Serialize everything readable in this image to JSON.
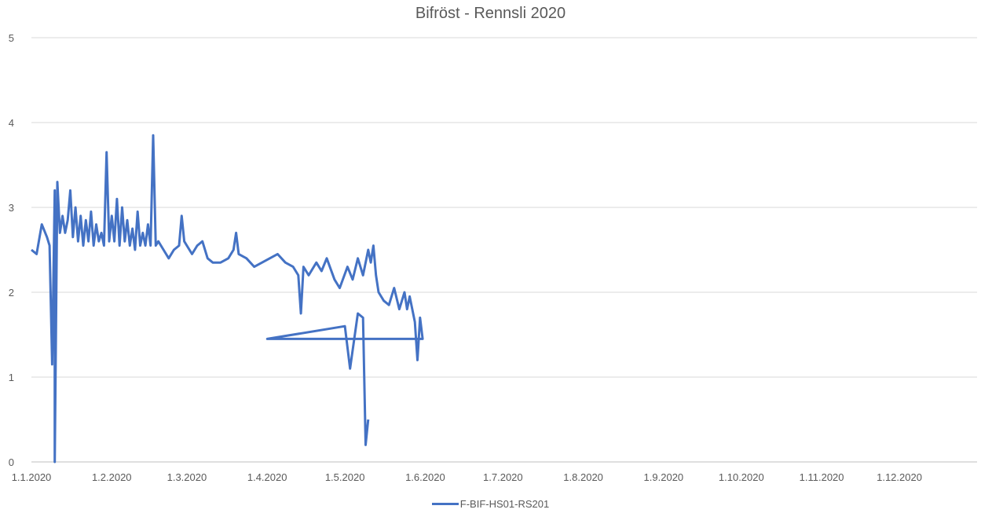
{
  "chart_data": {
    "type": "line",
    "title": "Bifröst - Rennsli 2020",
    "xlabel": "",
    "ylabel": "",
    "x_tick_labels": [
      "1.1.2020",
      "1.2.2020",
      "1.3.2020",
      "1.4.2020",
      "1.5.2020",
      "1.6.2020",
      "1.7.2020",
      "1.8.2020",
      "1.9.2020",
      "1.10.2020",
      "1.11.2020",
      "1.12.2020"
    ],
    "y_tick_labels": [
      "0",
      "1",
      "2",
      "3",
      "4",
      "5"
    ],
    "ylim": [
      0,
      5
    ],
    "xlim": [
      "1.1.2020",
      "31.12.2020"
    ],
    "grid": true,
    "legend_position": "bottom",
    "series": [
      {
        "name": "F-BIF-HS01-RS201",
        "color": "#4472C4",
        "x_format": "d.m.yyyy",
        "points": [
          [
            "1.1.2020",
            2.5
          ],
          [
            "3.1.2020",
            2.45
          ],
          [
            "5.1.2020",
            2.8
          ],
          [
            "7.1.2020",
            2.65
          ],
          [
            "8.1.2020",
            2.55
          ],
          [
            "9.1.2020",
            1.15
          ],
          [
            "10.1.2020",
            3.2
          ],
          [
            "10.1.2020",
            0.0
          ],
          [
            "11.1.2020",
            3.3
          ],
          [
            "12.1.2020",
            2.7
          ],
          [
            "13.1.2020",
            2.9
          ],
          [
            "14.1.2020",
            2.7
          ],
          [
            "15.1.2020",
            2.85
          ],
          [
            "16.1.2020",
            3.2
          ],
          [
            "17.1.2020",
            2.65
          ],
          [
            "18.1.2020",
            3.0
          ],
          [
            "19.1.2020",
            2.6
          ],
          [
            "20.1.2020",
            2.9
          ],
          [
            "21.1.2020",
            2.55
          ],
          [
            "22.1.2020",
            2.85
          ],
          [
            "23.1.2020",
            2.6
          ],
          [
            "24.1.2020",
            2.95
          ],
          [
            "25.1.2020",
            2.55
          ],
          [
            "26.1.2020",
            2.8
          ],
          [
            "27.1.2020",
            2.6
          ],
          [
            "28.1.2020",
            2.7
          ],
          [
            "29.1.2020",
            2.55
          ],
          [
            "30.1.2020",
            3.65
          ],
          [
            "31.1.2020",
            2.6
          ],
          [
            "1.2.2020",
            2.9
          ],
          [
            "2.2.2020",
            2.6
          ],
          [
            "3.2.2020",
            3.1
          ],
          [
            "4.2.2020",
            2.55
          ],
          [
            "5.2.2020",
            3.0
          ],
          [
            "6.2.2020",
            2.6
          ],
          [
            "7.2.2020",
            2.85
          ],
          [
            "8.2.2020",
            2.55
          ],
          [
            "9.2.2020",
            2.75
          ],
          [
            "10.2.2020",
            2.5
          ],
          [
            "11.2.2020",
            2.95
          ],
          [
            "12.2.2020",
            2.55
          ],
          [
            "13.2.2020",
            2.7
          ],
          [
            "14.2.2020",
            2.55
          ],
          [
            "15.2.2020",
            2.8
          ],
          [
            "16.2.2020",
            2.55
          ],
          [
            "17.2.2020",
            3.85
          ],
          [
            "18.2.2020",
            2.55
          ],
          [
            "19.2.2020",
            2.6
          ],
          [
            "21.2.2020",
            2.5
          ],
          [
            "23.2.2020",
            2.4
          ],
          [
            "25.2.2020",
            2.5
          ],
          [
            "27.2.2020",
            2.55
          ],
          [
            "28.2.2020",
            2.9
          ],
          [
            "29.2.2020",
            2.6
          ],
          [
            "1.3.2020",
            2.55
          ],
          [
            "3.3.2020",
            2.45
          ],
          [
            "5.3.2020",
            2.55
          ],
          [
            "7.3.2020",
            2.6
          ],
          [
            "9.3.2020",
            2.4
          ],
          [
            "11.3.2020",
            2.35
          ],
          [
            "14.3.2020",
            2.35
          ],
          [
            "17.3.2020",
            2.4
          ],
          [
            "19.3.2020",
            2.5
          ],
          [
            "20.3.2020",
            2.7
          ],
          [
            "21.3.2020",
            2.45
          ],
          [
            "24.3.2020",
            2.4
          ],
          [
            "27.3.2020",
            2.3
          ],
          [
            "30.3.2020",
            2.35
          ],
          [
            "2.4.2020",
            2.4
          ],
          [
            "5.4.2020",
            2.45
          ],
          [
            "8.4.2020",
            2.35
          ],
          [
            "11.4.2020",
            2.3
          ],
          [
            "13.4.2020",
            2.2
          ],
          [
            "14.4.2020",
            1.75
          ],
          [
            "15.4.2020",
            2.3
          ],
          [
            "17.4.2020",
            2.2
          ],
          [
            "20.4.2020",
            2.35
          ],
          [
            "22.4.2020",
            2.25
          ],
          [
            "24.4.2020",
            2.4
          ],
          [
            "27.4.2020",
            2.15
          ],
          [
            "29.4.2020",
            2.05
          ],
          [
            "2.5.2020",
            2.3
          ],
          [
            "4.5.2020",
            2.15
          ],
          [
            "6.5.2020",
            2.4
          ],
          [
            "8.5.2020",
            2.2
          ],
          [
            "10.5.2020",
            2.5
          ],
          [
            "11.5.2020",
            2.35
          ],
          [
            "12.5.2020",
            2.55
          ],
          [
            "13.5.2020",
            2.2
          ],
          [
            "14.5.2020",
            2.0
          ],
          [
            "16.5.2020",
            1.9
          ],
          [
            "18.5.2020",
            1.85
          ],
          [
            "20.5.2020",
            2.05
          ],
          [
            "22.5.2020",
            1.8
          ],
          [
            "24.5.2020",
            2.0
          ],
          [
            "25.5.2020",
            1.8
          ],
          [
            "26.5.2020",
            1.95
          ],
          [
            "28.5.2020",
            1.65
          ],
          [
            "29.5.2020",
            1.2
          ],
          [
            "30.5.2020",
            1.7
          ],
          [
            "31.5.2020",
            1.45
          ],
          [
            "1.4.2020",
            1.45
          ],
          [
            "1.5.2020",
            1.6
          ],
          [
            "3.5.2020",
            1.1
          ],
          [
            "6.5.2020",
            1.75
          ],
          [
            "8.5.2020",
            1.7
          ],
          [
            "9.5.2020",
            0.2
          ],
          [
            "10.5.2020",
            0.5
          ]
        ]
      }
    ]
  }
}
